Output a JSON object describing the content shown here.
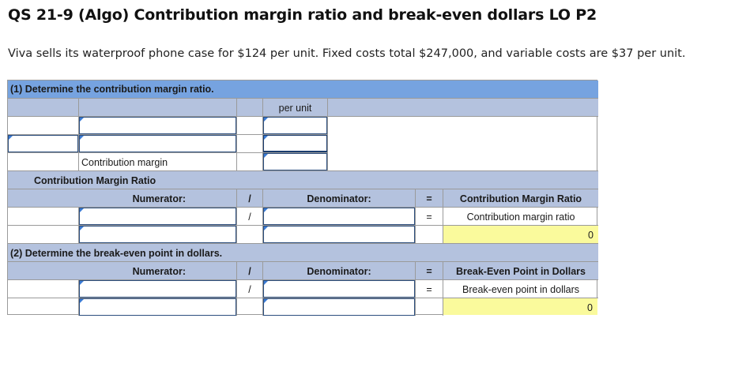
{
  "title": "QS 21-9 (Algo) Contribution margin ratio and break-even dollars LO P2",
  "problem_text": "Viva sells its waterproof phone case for $124 per unit. Fixed costs total $247,000, and variable costs are $37 per unit.",
  "part1": {
    "heading": "(1) Determine the contribution margin ratio.",
    "per_unit_header": "per unit",
    "contribution_margin_label": "Contribution margin",
    "cmr_heading": "Contribution Margin Ratio",
    "numerator_label": "Numerator:",
    "slash": "/",
    "denominator_label": "Denominator:",
    "equals": "=",
    "result_header": "Contribution Margin Ratio",
    "result_label": "Contribution margin ratio",
    "result_value": "0"
  },
  "part2": {
    "heading": "(2) Determine the break-even point in dollars.",
    "numerator_label": "Numerator:",
    "slash": "/",
    "denominator_label": "Denominator:",
    "equals": "=",
    "result_header": "Break-Even Point in Dollars",
    "result_label": "Break-even point in dollars",
    "result_value": "0"
  }
}
